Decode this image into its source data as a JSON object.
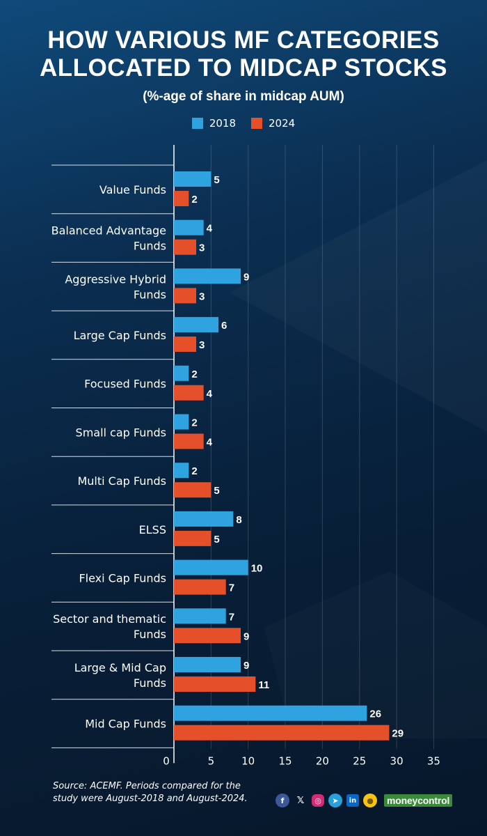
{
  "title_line1": "HOW VARIOUS MF CATEGORIES",
  "title_line2": "ALLOCATED TO MIDCAP STOCKS",
  "subtitle": "(%-age of share in midcap AUM)",
  "legend": [
    {
      "label": "2018",
      "color": "#2ea3e0"
    },
    {
      "label": "2024",
      "color": "#e5502a"
    }
  ],
  "source_line1": "Source: ACEMF. Periods compared for the",
  "source_line2": "study were August-2018 and August-2024.",
  "brand": "moneycontrol",
  "social_icons": [
    "facebook-icon",
    "x-icon",
    "instagram-icon",
    "telegram-icon",
    "linkedin-icon",
    "koo-icon"
  ],
  "chart_data": {
    "type": "bar",
    "orientation": "horizontal",
    "categories": [
      [
        "Value Funds"
      ],
      [
        "Balanced Advantage",
        "Funds"
      ],
      [
        "Aggressive Hybrid",
        "Funds"
      ],
      [
        "Large Cap Funds"
      ],
      [
        "Focused Funds"
      ],
      [
        "Small cap Funds"
      ],
      [
        "Multi Cap Funds"
      ],
      [
        "ELSS"
      ],
      [
        "Flexi Cap Funds"
      ],
      [
        "Sector and thematic",
        "Funds"
      ],
      [
        "Large & Mid Cap",
        "Funds"
      ],
      [
        "Mid Cap Funds"
      ]
    ],
    "series": [
      {
        "name": "2018",
        "color": "#2ea3e0",
        "values": [
          5,
          4,
          9,
          6,
          2,
          2,
          2,
          8,
          10,
          7,
          9,
          26
        ]
      },
      {
        "name": "2024",
        "color": "#e5502a",
        "values": [
          2,
          3,
          3,
          3,
          4,
          4,
          5,
          5,
          7,
          9,
          11,
          29
        ]
      }
    ],
    "xlim": [
      0,
      35
    ],
    "xticks": [
      0,
      5,
      10,
      15,
      20,
      25,
      30,
      35
    ],
    "grid": true,
    "legend_position": "top-center"
  }
}
